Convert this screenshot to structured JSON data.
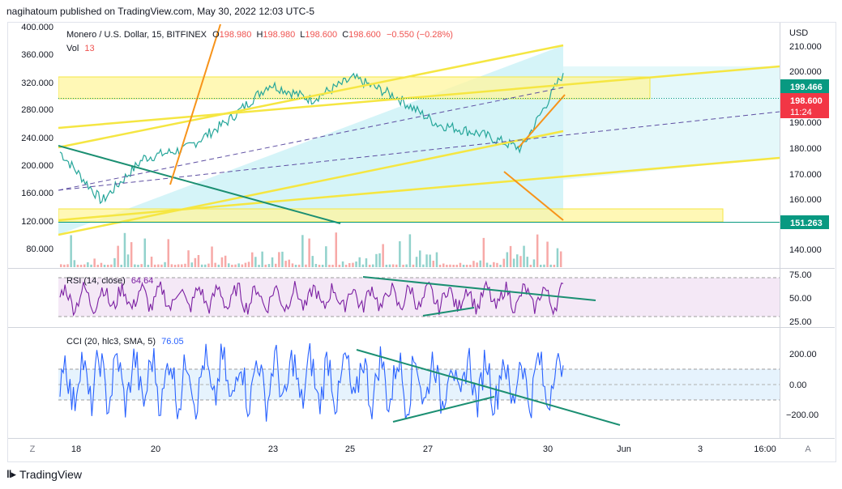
{
  "header": {
    "published": "nagihatoum published on TradingView.com, May 30, 2022 12:03 UTC-5"
  },
  "footer": {
    "brand": "TradingView",
    "logo_icon": "tradingview-logo-icon"
  },
  "colors": {
    "up": "#26a69a",
    "down": "#ef5350",
    "rsi_line": "#7b1fa2",
    "rsi_fill": "#f3e5f5",
    "cci_line": "#2962ff",
    "cci_fill": "#e3f2fd",
    "channel_fill": "#b2ebf2",
    "zone_fill": "#fff59d",
    "trend_yellow": "#f5e642",
    "trend_orange": "#f7931a",
    "trend_green": "#1b8f72",
    "dashed_purple": "#5e4fa2",
    "price_label_bg": "#089981",
    "last_label_bg": "#f23645"
  },
  "legend": {
    "symbol": "Monero / U.S. Dollar, 15, BITFINEX",
    "o_label": "O",
    "o": "198.980",
    "h_label": "H",
    "h": "198.980",
    "l_label": "L",
    "l": "198.600",
    "c_label": "C",
    "c": "198.600",
    "change": "−0.550 (−0.28%)",
    "vol_label": "Vol",
    "vol": "13"
  },
  "price_axis": {
    "currency": "USD",
    "ticks": [
      "210.000",
      "200.000",
      "190.000",
      "180.000",
      "170.000",
      "160.000",
      "150.000",
      "140.000"
    ],
    "label_upper": "199.466",
    "label_last": "198.600",
    "label_countdown": "11:24",
    "label_lower": "151.263"
  },
  "left_axis": {
    "ticks": [
      "400.000",
      "360.000",
      "320.000",
      "280.000",
      "240.000",
      "200.000",
      "160.000",
      "120.000",
      "80.000"
    ]
  },
  "time_axis": {
    "labels": [
      "18",
      "20",
      "23",
      "25",
      "27",
      "30",
      "Jun",
      "3",
      "16:00"
    ]
  },
  "rsi": {
    "title": "RSI (14, close)",
    "value": "64.64",
    "ticks": [
      "75.00",
      "50.00",
      "25.00"
    ]
  },
  "cci": {
    "title": "CCI (20, hlc3, SMA, 5)",
    "value": "76.05",
    "ticks": [
      "200.00",
      "0.00",
      "−200.00"
    ]
  },
  "corner_buttons": {
    "left": "Z",
    "right": "A"
  },
  "chart_data": {
    "type": "line",
    "title": "Monero / U.S. Dollar, 15, BITFINEX",
    "xlabel": "",
    "ylabel": "USD",
    "x": [
      "18",
      "19",
      "20",
      "21",
      "22",
      "23",
      "24",
      "25",
      "26",
      "27",
      "28",
      "29",
      "30"
    ],
    "series": [
      {
        "values": [
          173,
          157,
          171,
          174,
          183,
          195,
          190,
          197,
          191,
          182,
          179,
          174,
          198.6
        ]
      }
    ],
    "ylim": [
      135,
      215
    ],
    "horizontal_levels": [
      199.466,
      151.263
    ],
    "rsi": {
      "ylim": [
        20,
        80
      ],
      "levels": [
        70,
        30
      ],
      "last": 64.64
    },
    "cci": {
      "ylim": [
        -280,
        260
      ],
      "levels": [
        100,
        -100
      ],
      "last": 76.05
    },
    "grid": true
  }
}
